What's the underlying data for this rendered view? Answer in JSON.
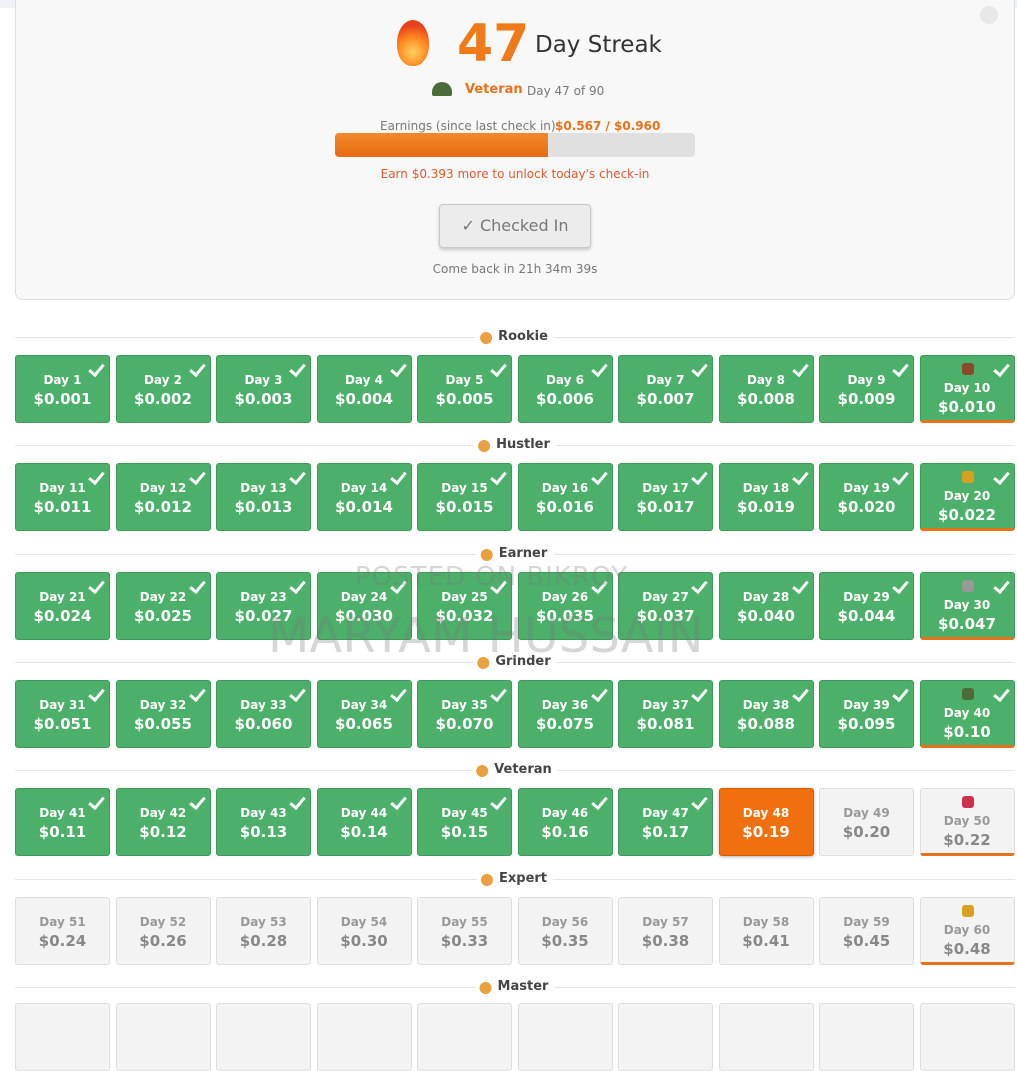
{
  "header": {
    "streak": "47",
    "streak_label": "Day Streak",
    "rank": "Veteran",
    "progress_text": "Day 47 of 90",
    "earnings_label": "Earnings (since last check in)",
    "earnings_value": "$0.567 / $0.960",
    "earned": 0.567,
    "target": 0.96,
    "hint": "Earn $0.393 more to unlock today's check-in",
    "button": "✓ Checked In",
    "countdown": "Come back in 21h 34m 39s"
  },
  "watermark": [
    "POSTED ON BIKROY",
    "MARYAM HUSSAIN"
  ],
  "tiers": [
    {
      "name": "Rookie",
      "days": [
        {
          "label": "Day 1",
          "amount": "$0.001",
          "state": "checked"
        },
        {
          "label": "Day 2",
          "amount": "$0.002",
          "state": "checked"
        },
        {
          "label": "Day 3",
          "amount": "$0.003",
          "state": "checked"
        },
        {
          "label": "Day 4",
          "amount": "$0.004",
          "state": "checked"
        },
        {
          "label": "Day 5",
          "amount": "$0.005",
          "state": "checked"
        },
        {
          "label": "Day 6",
          "amount": "$0.006",
          "state": "checked"
        },
        {
          "label": "Day 7",
          "amount": "$0.007",
          "state": "checked"
        },
        {
          "label": "Day 8",
          "amount": "$0.008",
          "state": "checked"
        },
        {
          "label": "Day 9",
          "amount": "$0.009",
          "state": "checked"
        },
        {
          "label": "Day 10",
          "amount": "$0.010",
          "state": "checked"
        }
      ]
    },
    {
      "name": "Hustler",
      "days": [
        {
          "label": "Day 11",
          "amount": "$0.011",
          "state": "checked"
        },
        {
          "label": "Day 12",
          "amount": "$0.012",
          "state": "checked"
        },
        {
          "label": "Day 13",
          "amount": "$0.013",
          "state": "checked"
        },
        {
          "label": "Day 14",
          "amount": "$0.014",
          "state": "checked"
        },
        {
          "label": "Day 15",
          "amount": "$0.015",
          "state": "checked"
        },
        {
          "label": "Day 16",
          "amount": "$0.016",
          "state": "checked"
        },
        {
          "label": "Day 17",
          "amount": "$0.017",
          "state": "checked"
        },
        {
          "label": "Day 18",
          "amount": "$0.019",
          "state": "checked"
        },
        {
          "label": "Day 19",
          "amount": "$0.020",
          "state": "checked"
        },
        {
          "label": "Day 20",
          "amount": "$0.022",
          "state": "checked"
        }
      ]
    },
    {
      "name": "Earner",
      "days": [
        {
          "label": "Day 21",
          "amount": "$0.024",
          "state": "checked"
        },
        {
          "label": "Day 22",
          "amount": "$0.025",
          "state": "checked"
        },
        {
          "label": "Day 23",
          "amount": "$0.027",
          "state": "checked"
        },
        {
          "label": "Day 24",
          "amount": "$0.030",
          "state": "checked"
        },
        {
          "label": "Day 25",
          "amount": "$0.032",
          "state": "checked"
        },
        {
          "label": "Day 26",
          "amount": "$0.035",
          "state": "checked"
        },
        {
          "label": "Day 27",
          "amount": "$0.037",
          "state": "checked"
        },
        {
          "label": "Day 28",
          "amount": "$0.040",
          "state": "checked"
        },
        {
          "label": "Day 29",
          "amount": "$0.044",
          "state": "checked"
        },
        {
          "label": "Day 30",
          "amount": "$0.047",
          "state": "checked"
        }
      ]
    },
    {
      "name": "Grinder",
      "days": [
        {
          "label": "Day 31",
          "amount": "$0.051",
          "state": "checked"
        },
        {
          "label": "Day 32",
          "amount": "$0.055",
          "state": "checked"
        },
        {
          "label": "Day 33",
          "amount": "$0.060",
          "state": "checked"
        },
        {
          "label": "Day 34",
          "amount": "$0.065",
          "state": "checked"
        },
        {
          "label": "Day 35",
          "amount": "$0.070",
          "state": "checked"
        },
        {
          "label": "Day 36",
          "amount": "$0.075",
          "state": "checked"
        },
        {
          "label": "Day 37",
          "amount": "$0.081",
          "state": "checked"
        },
        {
          "label": "Day 38",
          "amount": "$0.088",
          "state": "checked"
        },
        {
          "label": "Day 39",
          "amount": "$0.095",
          "state": "checked"
        },
        {
          "label": "Day 40",
          "amount": "$0.10",
          "state": "checked"
        }
      ]
    },
    {
      "name": "Veteran",
      "days": [
        {
          "label": "Day 41",
          "amount": "$0.11",
          "state": "checked"
        },
        {
          "label": "Day 42",
          "amount": "$0.12",
          "state": "checked"
        },
        {
          "label": "Day 43",
          "amount": "$0.13",
          "state": "checked"
        },
        {
          "label": "Day 44",
          "amount": "$0.14",
          "state": "checked"
        },
        {
          "label": "Day 45",
          "amount": "$0.15",
          "state": "checked"
        },
        {
          "label": "Day 46",
          "amount": "$0.16",
          "state": "checked"
        },
        {
          "label": "Day 47",
          "amount": "$0.17",
          "state": "checked"
        },
        {
          "label": "Day 48",
          "amount": "$0.19",
          "state": "current"
        },
        {
          "label": "Day 49",
          "amount": "$0.20",
          "state": "locked"
        },
        {
          "label": "Day 50",
          "amount": "$0.22",
          "state": "locked"
        }
      ]
    },
    {
      "name": "Expert",
      "days": [
        {
          "label": "Day 51",
          "amount": "$0.24",
          "state": "locked"
        },
        {
          "label": "Day 52",
          "amount": "$0.26",
          "state": "locked"
        },
        {
          "label": "Day 53",
          "amount": "$0.28",
          "state": "locked"
        },
        {
          "label": "Day 54",
          "amount": "$0.30",
          "state": "locked"
        },
        {
          "label": "Day 55",
          "amount": "$0.33",
          "state": "locked"
        },
        {
          "label": "Day 56",
          "amount": "$0.35",
          "state": "locked"
        },
        {
          "label": "Day 57",
          "amount": "$0.38",
          "state": "locked"
        },
        {
          "label": "Day 58",
          "amount": "$0.41",
          "state": "locked"
        },
        {
          "label": "Day 59",
          "amount": "$0.45",
          "state": "locked"
        },
        {
          "label": "Day 60",
          "amount": "$0.48",
          "state": "locked"
        }
      ]
    },
    {
      "name": "Master",
      "days": []
    }
  ]
}
